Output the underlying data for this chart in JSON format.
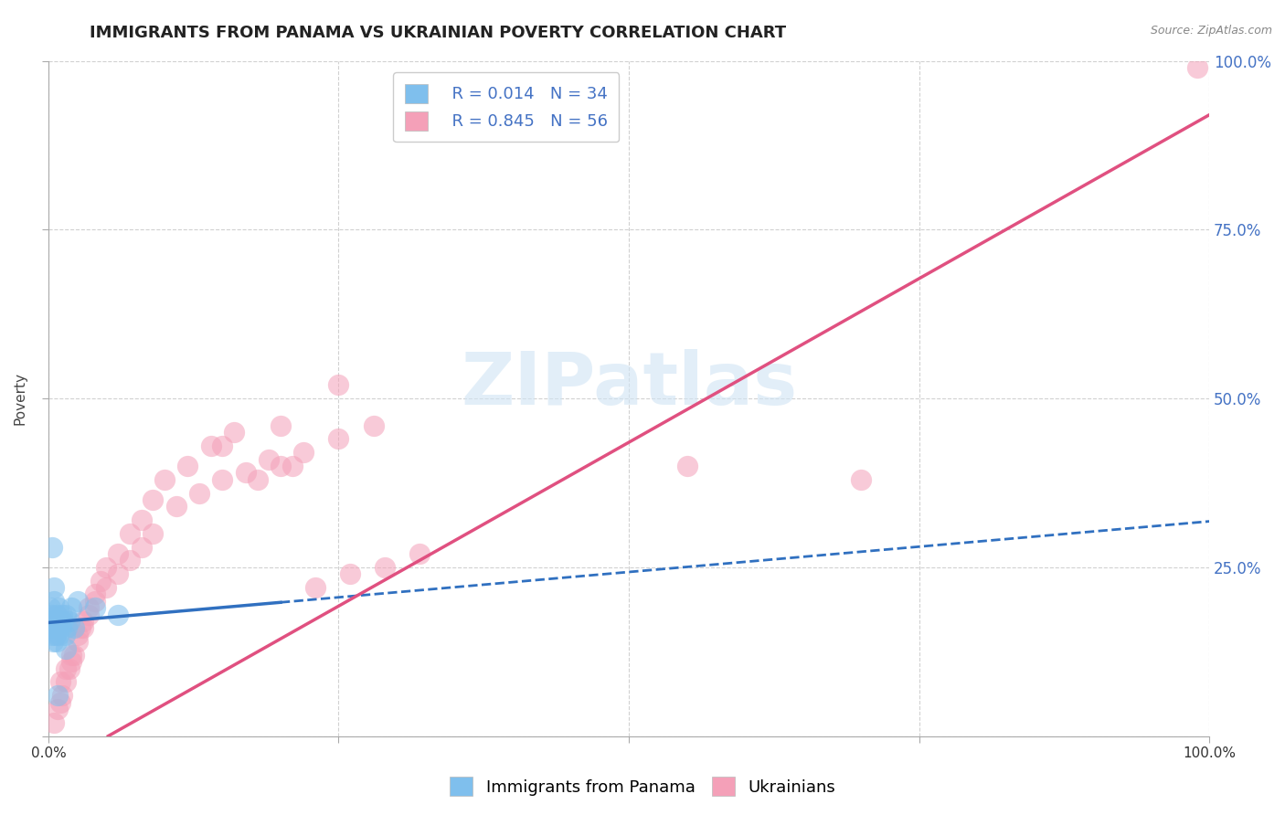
{
  "title": "IMMIGRANTS FROM PANAMA VS UKRAINIAN POVERTY CORRELATION CHART",
  "source": "Source: ZipAtlas.com",
  "ylabel": "Poverty",
  "xlim": [
    0,
    1
  ],
  "ylim": [
    0,
    1
  ],
  "watermark": "ZIPatlas",
  "legend_label1": "Immigrants from Panama",
  "legend_label2": "Ukrainians",
  "R1": 0.014,
  "N1": 34,
  "R2": 0.845,
  "N2": 56,
  "color_panama": "#7fbfed",
  "color_ukraine": "#f4a0b8",
  "color_panama_line": "#3070c0",
  "color_ukraine_line": "#e05080",
  "panama_x": [
    0.001,
    0.002,
    0.002,
    0.003,
    0.003,
    0.004,
    0.004,
    0.005,
    0.005,
    0.006,
    0.006,
    0.007,
    0.007,
    0.008,
    0.008,
    0.009,
    0.009,
    0.01,
    0.011,
    0.012,
    0.013,
    0.014,
    0.015,
    0.016,
    0.018,
    0.02,
    0.022,
    0.025,
    0.003,
    0.005,
    0.06,
    0.04,
    0.015,
    0.008
  ],
  "panama_y": [
    0.17,
    0.16,
    0.19,
    0.15,
    0.18,
    0.14,
    0.17,
    0.16,
    0.2,
    0.15,
    0.17,
    0.14,
    0.18,
    0.16,
    0.17,
    0.15,
    0.19,
    0.17,
    0.16,
    0.18,
    0.17,
    0.15,
    0.18,
    0.16,
    0.17,
    0.19,
    0.16,
    0.2,
    0.28,
    0.22,
    0.18,
    0.19,
    0.13,
    0.06
  ],
  "ukraine_x": [
    0.005,
    0.008,
    0.01,
    0.012,
    0.015,
    0.018,
    0.02,
    0.022,
    0.025,
    0.028,
    0.03,
    0.035,
    0.04,
    0.045,
    0.05,
    0.06,
    0.07,
    0.08,
    0.09,
    0.1,
    0.12,
    0.14,
    0.16,
    0.18,
    0.2,
    0.22,
    0.25,
    0.28,
    0.01,
    0.015,
    0.02,
    0.025,
    0.03,
    0.035,
    0.04,
    0.05,
    0.06,
    0.07,
    0.08,
    0.09,
    0.11,
    0.13,
    0.15,
    0.17,
    0.19,
    0.21,
    0.23,
    0.26,
    0.29,
    0.32,
    0.15,
    0.2,
    0.25,
    0.55,
    0.7,
    0.99
  ],
  "ukraine_y": [
    0.02,
    0.04,
    0.05,
    0.06,
    0.08,
    0.1,
    0.11,
    0.12,
    0.14,
    0.16,
    0.17,
    0.19,
    0.21,
    0.23,
    0.25,
    0.27,
    0.3,
    0.32,
    0.35,
    0.38,
    0.4,
    0.43,
    0.45,
    0.38,
    0.4,
    0.42,
    0.44,
    0.46,
    0.08,
    0.1,
    0.12,
    0.15,
    0.16,
    0.18,
    0.2,
    0.22,
    0.24,
    0.26,
    0.28,
    0.3,
    0.34,
    0.36,
    0.38,
    0.39,
    0.41,
    0.4,
    0.22,
    0.24,
    0.25,
    0.27,
    0.43,
    0.46,
    0.52,
    0.4,
    0.38,
    0.99
  ],
  "grid_color": "#cccccc",
  "background_color": "#ffffff",
  "title_fontsize": 13,
  "axis_label_fontsize": 11,
  "tick_fontsize": 11,
  "legend_fontsize": 13,
  "right_tick_color": "#4472c4",
  "panama_line_slope": 0.15,
  "panama_line_intercept": 0.168,
  "ukraine_line_slope": 0.97,
  "ukraine_line_intercept": -0.05
}
